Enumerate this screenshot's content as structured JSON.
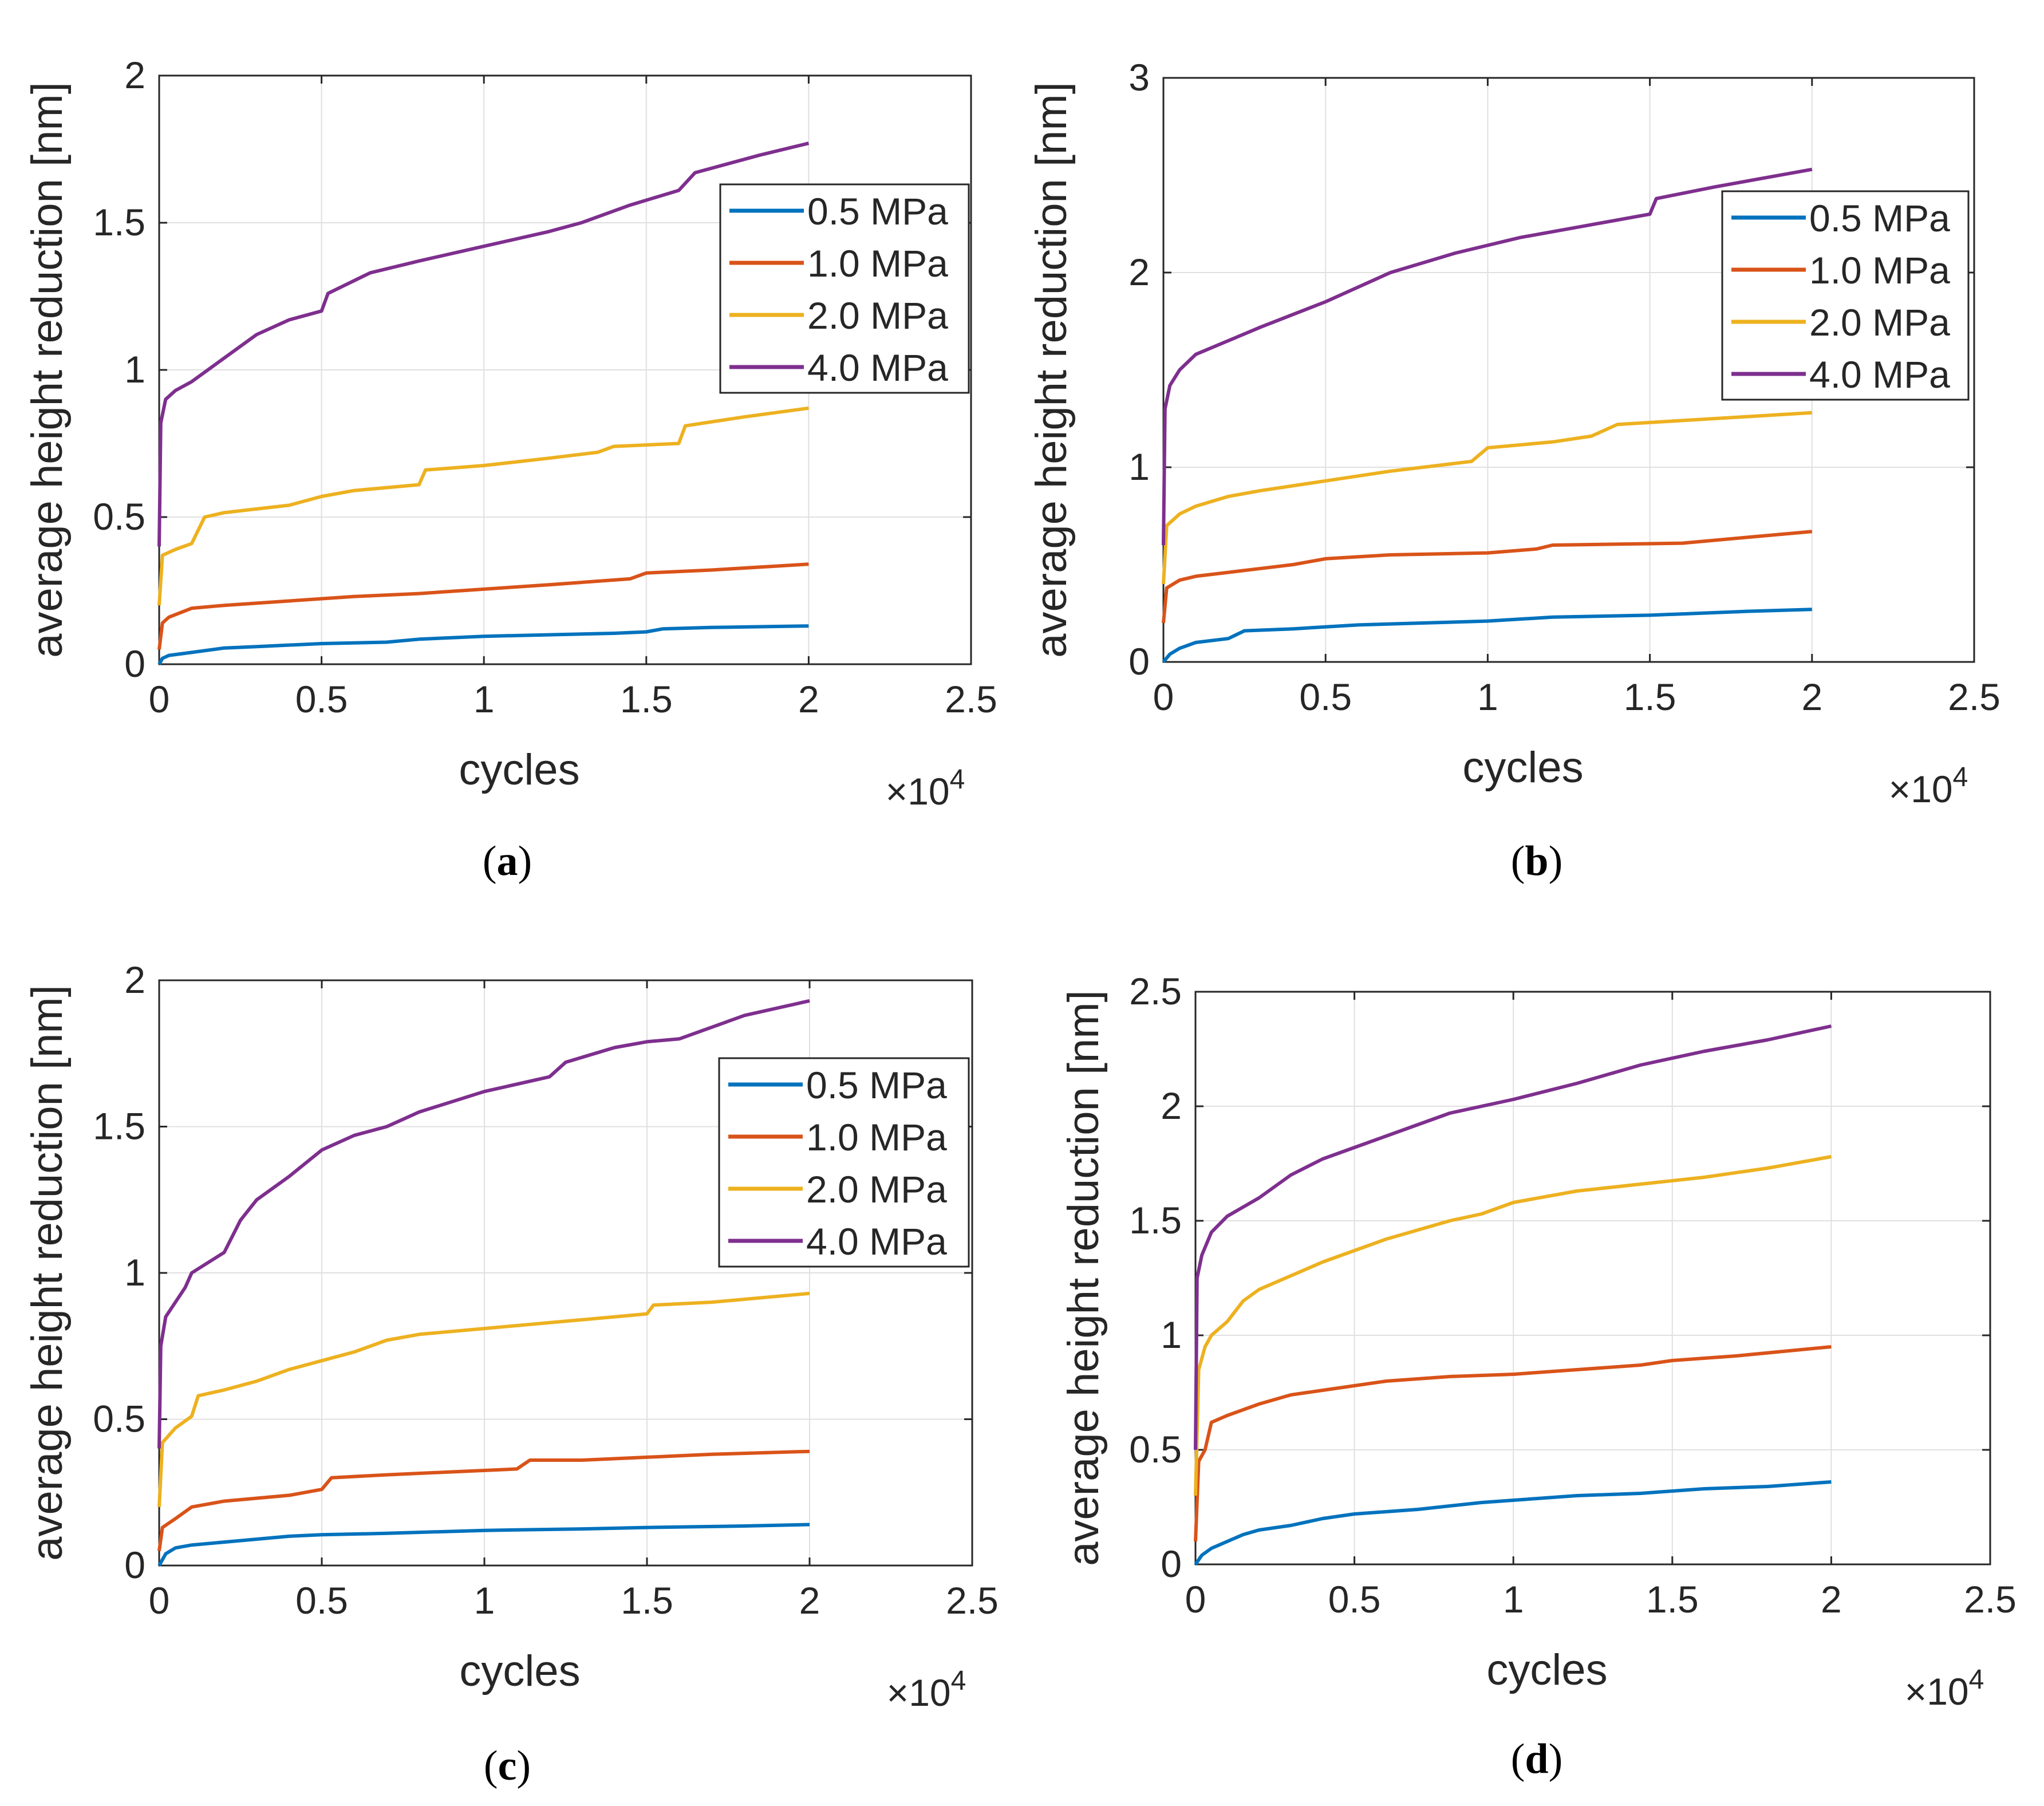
{
  "figure": {
    "series_names": [
      "0.5 MPa",
      "1.0 MPa",
      "2.0 MPa",
      "4.0 MPa"
    ],
    "series_colors": [
      "#0072BD",
      "#D95319",
      "#EDB120",
      "#7E2F8E"
    ],
    "multiplier_base": "×10",
    "multiplier_exp": "4"
  },
  "chart_data": [
    {
      "panel": "a",
      "caption_letter": "a",
      "type": "line",
      "xlabel": "cycles",
      "ylabel": "average height reduction [nm]",
      "xlim": [
        0,
        25000
      ],
      "ylim": [
        0,
        2
      ],
      "x_ticks": [
        0,
        5000,
        10000,
        15000,
        20000,
        25000
      ],
      "x_tick_labels": [
        "0",
        "0.5",
        "1",
        "1.5",
        "2",
        "2.5"
      ],
      "y_ticks": [
        0,
        0.5,
        1,
        1.5,
        2
      ],
      "y_tick_labels": [
        "0",
        "0.5",
        "1",
        "1.5",
        "2"
      ],
      "legend": "top-right",
      "grid": true,
      "series": [
        {
          "name": "0.5 MPa",
          "x": [
            0,
            100,
            300,
            1000,
            2000,
            3000,
            5000,
            7000,
            8000,
            9000,
            10000,
            12000,
            14000,
            15000,
            15500,
            17000,
            20000
          ],
          "y": [
            0.0,
            0.02,
            0.03,
            0.04,
            0.055,
            0.06,
            0.07,
            0.075,
            0.085,
            0.09,
            0.095,
            0.1,
            0.105,
            0.11,
            0.12,
            0.125,
            0.13
          ]
        },
        {
          "name": "1.0 MPa",
          "x": [
            0,
            100,
            300,
            1000,
            2000,
            4000,
            6000,
            8000,
            10000,
            12000,
            14500,
            15000,
            17000,
            20000
          ],
          "y": [
            0.05,
            0.14,
            0.16,
            0.19,
            0.2,
            0.215,
            0.23,
            0.24,
            0.255,
            0.27,
            0.29,
            0.31,
            0.32,
            0.34
          ]
        },
        {
          "name": "2.0 MPa",
          "x": [
            0,
            100,
            500,
            1000,
            1400,
            2000,
            4000,
            5000,
            6000,
            8000,
            8200,
            10000,
            12000,
            13500,
            14000,
            16000,
            16200,
            18000,
            20000
          ],
          "y": [
            0.2,
            0.37,
            0.39,
            0.41,
            0.5,
            0.515,
            0.54,
            0.57,
            0.59,
            0.61,
            0.66,
            0.675,
            0.7,
            0.72,
            0.74,
            0.75,
            0.81,
            0.84,
            0.87
          ]
        },
        {
          "name": "4.0 MPa",
          "x": [
            0,
            50,
            200,
            500,
            1000,
            2000,
            3000,
            4000,
            5000,
            5200,
            6500,
            8000,
            10000,
            12000,
            13000,
            14500,
            16000,
            16500,
            18500,
            20000
          ],
          "y": [
            0.4,
            0.82,
            0.9,
            0.93,
            0.96,
            1.04,
            1.12,
            1.17,
            1.2,
            1.26,
            1.33,
            1.37,
            1.42,
            1.47,
            1.5,
            1.56,
            1.61,
            1.67,
            1.73,
            1.77
          ]
        }
      ]
    },
    {
      "panel": "b",
      "caption_letter": "b",
      "type": "line",
      "xlabel": "cycles",
      "ylabel": "average height reduction [nm]",
      "xlim": [
        0,
        25000
      ],
      "ylim": [
        0,
        3
      ],
      "x_ticks": [
        0,
        5000,
        10000,
        15000,
        20000,
        25000
      ],
      "x_tick_labels": [
        "0",
        "0.5",
        "1",
        "1.5",
        "2",
        "2.5"
      ],
      "y_ticks": [
        0,
        1,
        2,
        3
      ],
      "y_tick_labels": [
        "0",
        "1",
        "2",
        "3"
      ],
      "legend": "top-right",
      "grid": true,
      "series": [
        {
          "name": "0.5 MPa",
          "x": [
            0,
            200,
            500,
            1000,
            2000,
            2500,
            4000,
            6000,
            8000,
            10000,
            12000,
            15000,
            18000,
            20000
          ],
          "y": [
            0.0,
            0.04,
            0.07,
            0.1,
            0.12,
            0.16,
            0.17,
            0.19,
            0.2,
            0.21,
            0.23,
            0.24,
            0.26,
            0.27
          ]
        },
        {
          "name": "1.0 MPa",
          "x": [
            0,
            100,
            500,
            1000,
            2000,
            3000,
            4000,
            5000,
            7000,
            10000,
            11500,
            12000,
            16000,
            18000,
            20000
          ],
          "y": [
            0.2,
            0.38,
            0.42,
            0.44,
            0.46,
            0.48,
            0.5,
            0.53,
            0.55,
            0.56,
            0.58,
            0.6,
            0.61,
            0.64,
            0.67
          ]
        },
        {
          "name": "2.0 MPa",
          "x": [
            0,
            100,
            500,
            1000,
            2000,
            3000,
            5000,
            7000,
            9500,
            10000,
            12000,
            13200,
            14000,
            16000,
            18000,
            20000
          ],
          "y": [
            0.4,
            0.7,
            0.76,
            0.8,
            0.85,
            0.88,
            0.93,
            0.98,
            1.03,
            1.1,
            1.13,
            1.16,
            1.22,
            1.24,
            1.26,
            1.28
          ]
        },
        {
          "name": "4.0 MPa",
          "x": [
            0,
            50,
            200,
            500,
            1000,
            2000,
            3000,
            5000,
            7000,
            9000,
            11000,
            13000,
            15000,
            15200,
            17000,
            20000
          ],
          "y": [
            0.6,
            1.3,
            1.42,
            1.5,
            1.58,
            1.65,
            1.72,
            1.85,
            2.0,
            2.1,
            2.18,
            2.24,
            2.3,
            2.38,
            2.44,
            2.53
          ]
        }
      ]
    },
    {
      "panel": "c",
      "caption_letter": "c",
      "type": "line",
      "xlabel": "cycles",
      "ylabel": "average height reduction [nm]",
      "xlim": [
        0,
        25000
      ],
      "ylim": [
        0,
        2
      ],
      "x_ticks": [
        0,
        5000,
        10000,
        15000,
        20000,
        25000
      ],
      "x_tick_labels": [
        "0",
        "0.5",
        "1",
        "1.5",
        "2",
        "2.5"
      ],
      "y_ticks": [
        0,
        0.5,
        1,
        1.5,
        2
      ],
      "y_tick_labels": [
        "0",
        "0.5",
        "1",
        "1.5",
        "2"
      ],
      "legend": "top-right",
      "grid": true,
      "series": [
        {
          "name": "0.5 MPa",
          "x": [
            0,
            200,
            500,
            1000,
            2000,
            3000,
            4000,
            5000,
            7000,
            10000,
            13000,
            15000,
            18000,
            20000
          ],
          "y": [
            0.0,
            0.04,
            0.06,
            0.07,
            0.08,
            0.09,
            0.1,
            0.105,
            0.11,
            0.12,
            0.125,
            0.13,
            0.135,
            0.14
          ]
        },
        {
          "name": "1.0 MPa",
          "x": [
            0,
            100,
            500,
            1000,
            2000,
            3000,
            4000,
            5000,
            5300,
            7000,
            9000,
            11000,
            11400,
            13000,
            15000,
            17000,
            20000
          ],
          "y": [
            0.05,
            0.13,
            0.16,
            0.2,
            0.22,
            0.23,
            0.24,
            0.26,
            0.3,
            0.31,
            0.32,
            0.33,
            0.36,
            0.36,
            0.37,
            0.38,
            0.39
          ]
        },
        {
          "name": "2.0 MPa",
          "x": [
            0,
            100,
            500,
            1000,
            1200,
            2000,
            3000,
            4000,
            5000,
            6000,
            7000,
            8000,
            10000,
            12000,
            14000,
            15000,
            15200,
            17000,
            20000
          ],
          "y": [
            0.2,
            0.42,
            0.47,
            0.51,
            0.58,
            0.6,
            0.63,
            0.67,
            0.7,
            0.73,
            0.77,
            0.79,
            0.81,
            0.83,
            0.85,
            0.86,
            0.89,
            0.9,
            0.93
          ]
        },
        {
          "name": "4.0 MPa",
          "x": [
            0,
            50,
            200,
            500,
            800,
            1000,
            2000,
            2500,
            3000,
            4000,
            5000,
            6000,
            7000,
            8000,
            10000,
            12000,
            12500,
            14000,
            15000,
            16000,
            18000,
            20000
          ],
          "y": [
            0.4,
            0.75,
            0.85,
            0.9,
            0.95,
            1.0,
            1.07,
            1.18,
            1.25,
            1.33,
            1.42,
            1.47,
            1.5,
            1.55,
            1.62,
            1.67,
            1.72,
            1.77,
            1.79,
            1.8,
            1.88,
            1.93
          ]
        }
      ]
    },
    {
      "panel": "d",
      "caption_letter": "d",
      "type": "line",
      "xlabel": "cycles",
      "ylabel": "average height reduction [nm]",
      "xlim": [
        0,
        25000
      ],
      "ylim": [
        0,
        2.5
      ],
      "x_ticks": [
        0,
        5000,
        10000,
        15000,
        20000,
        25000
      ],
      "x_tick_labels": [
        "0",
        "0.5",
        "1",
        "1.5",
        "2",
        "2.5"
      ],
      "y_ticks": [
        0,
        0.5,
        1,
        1.5,
        2,
        2.5
      ],
      "y_tick_labels": [
        "0",
        "0.5",
        "1",
        "1.5",
        "2",
        "2.5"
      ],
      "legend": "none",
      "grid": true,
      "series": [
        {
          "name": "0.5 MPa",
          "x": [
            0,
            200,
            500,
            1000,
            1500,
            2000,
            3000,
            4000,
            5000,
            7000,
            9000,
            10000,
            12000,
            14000,
            16000,
            18000,
            20000
          ],
          "y": [
            0.0,
            0.04,
            0.07,
            0.1,
            0.13,
            0.15,
            0.17,
            0.2,
            0.22,
            0.24,
            0.27,
            0.28,
            0.3,
            0.31,
            0.33,
            0.34,
            0.36
          ]
        },
        {
          "name": "1.0 MPa",
          "x": [
            0,
            100,
            300,
            500,
            1000,
            2000,
            3000,
            4000,
            5000,
            6000,
            8000,
            10000,
            12000,
            14000,
            15000,
            17000,
            20000
          ],
          "y": [
            0.1,
            0.45,
            0.5,
            0.62,
            0.65,
            0.7,
            0.74,
            0.76,
            0.78,
            0.8,
            0.82,
            0.83,
            0.85,
            0.87,
            0.89,
            0.91,
            0.95
          ]
        },
        {
          "name": "2.0 MPa",
          "x": [
            0,
            100,
            300,
            500,
            1000,
            1500,
            2000,
            3000,
            4000,
            5000,
            6000,
            8000,
            9000,
            10000,
            12000,
            14000,
            16000,
            18000,
            20000
          ],
          "y": [
            0.3,
            0.85,
            0.95,
            1.0,
            1.06,
            1.15,
            1.2,
            1.26,
            1.32,
            1.37,
            1.42,
            1.5,
            1.53,
            1.58,
            1.63,
            1.66,
            1.69,
            1.73,
            1.78
          ]
        },
        {
          "name": "4.0 MPa",
          "x": [
            0,
            50,
            200,
            500,
            1000,
            2000,
            3000,
            4000,
            5000,
            6000,
            8000,
            10000,
            12000,
            14000,
            16000,
            18000,
            20000
          ],
          "y": [
            0.5,
            1.25,
            1.35,
            1.45,
            1.52,
            1.6,
            1.7,
            1.77,
            1.82,
            1.87,
            1.97,
            2.03,
            2.1,
            2.18,
            2.24,
            2.29,
            2.35
          ]
        }
      ]
    }
  ]
}
